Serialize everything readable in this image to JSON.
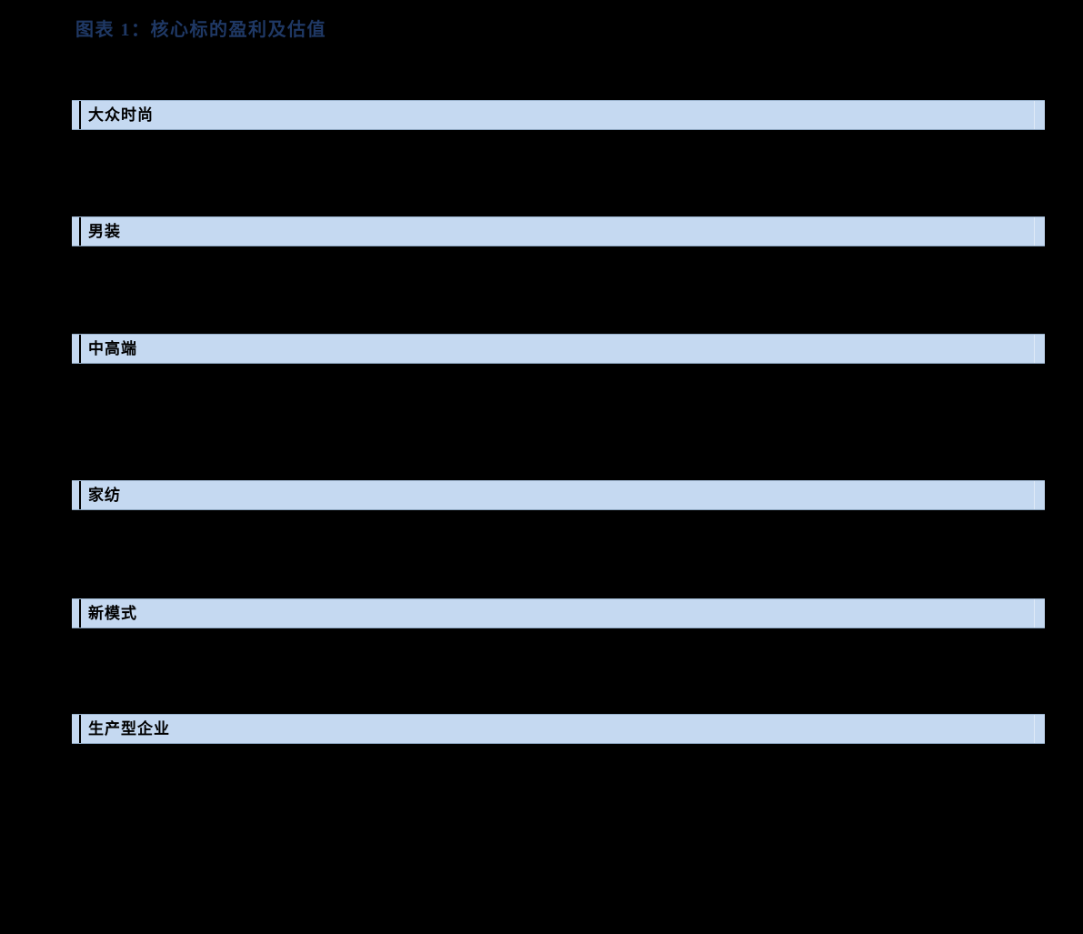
{
  "figure": {
    "title": "图表 1：核心标的盈利及估值"
  },
  "table": {
    "section_rows": [
      {
        "label": "大众时尚"
      },
      {
        "label": "男装"
      },
      {
        "label": "中高端"
      },
      {
        "label": "家纺"
      },
      {
        "label": "新模式"
      },
      {
        "label": "生产型企业"
      }
    ]
  },
  "colors": {
    "page_background": "#000000",
    "title_text": "#1F3864",
    "section_row_fill": "#C5D9F1",
    "section_row_border": "#96AEC6",
    "section_row_text": "#000000"
  }
}
